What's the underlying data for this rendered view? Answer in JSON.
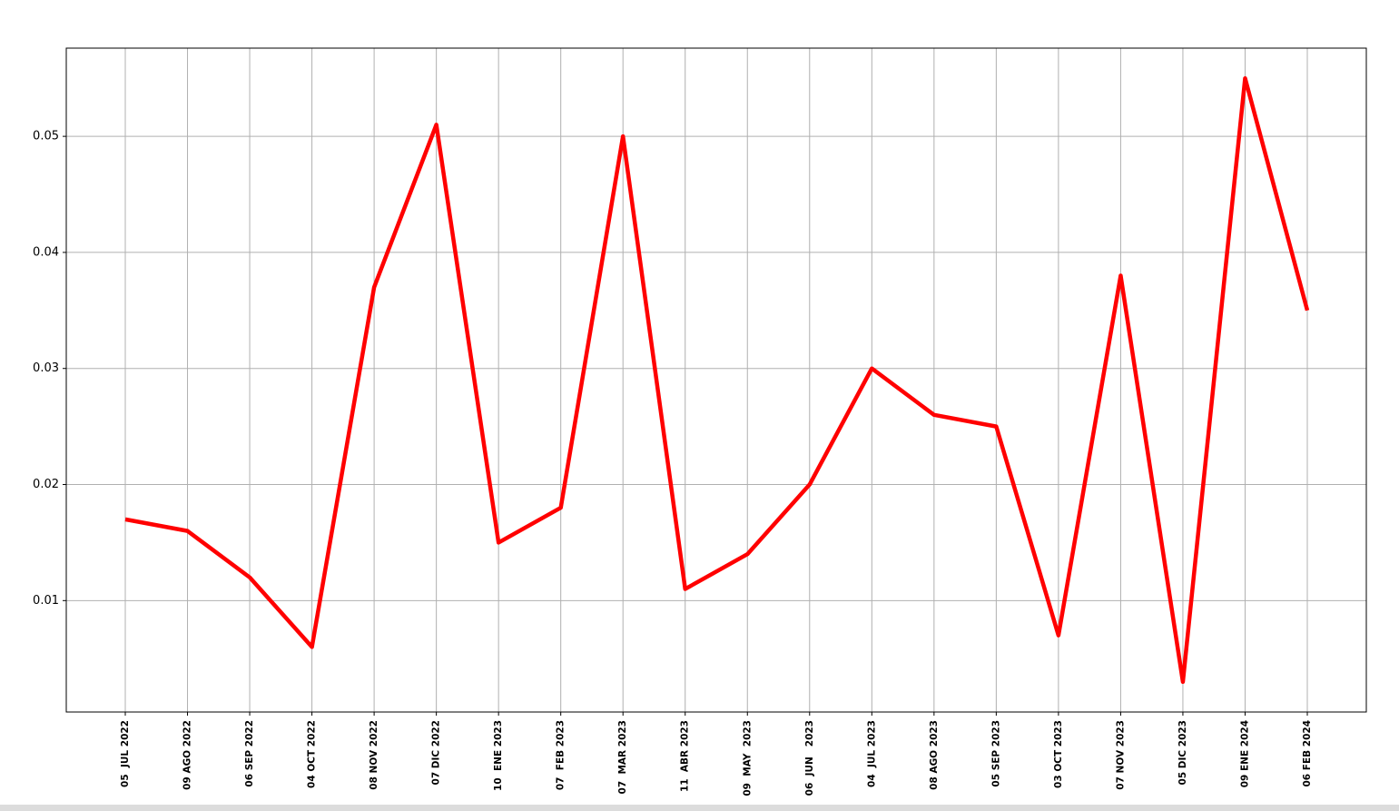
{
  "chart_data": {
    "type": "line",
    "categories": [
      "05  JUL 2022",
      "09 AGO 2022",
      "06 SEP 2022",
      "04 OCT 2022",
      "08 NOV 2022",
      "07 DIC 2022",
      "10  ENE 2023",
      "07  FEB 2023",
      "07  MAR 2023",
      "11  ABR 2023",
      "09  MAY  2023",
      "06  JUN   2023",
      "04  JUL 2023",
      "08 AGO 2023",
      "05 SEP 2023",
      "03 OCT 2023",
      "07 NOV 2023",
      "05 DIC 2023",
      "09 ENE 2024",
      "06 FEB 2024"
    ],
    "values": [
      0.017,
      0.016,
      0.012,
      0.006,
      0.037,
      0.051,
      0.015,
      0.018,
      0.05,
      0.011,
      0.014,
      0.02,
      0.03,
      0.026,
      0.025,
      0.007,
      0.038,
      0.003,
      0.055,
      0.035
    ],
    "color": "#ff0000",
    "ylim": [
      0.0004,
      0.0576
    ],
    "yticks": [
      0.01,
      0.02,
      0.03,
      0.04,
      0.05
    ],
    "grid": true
  }
}
